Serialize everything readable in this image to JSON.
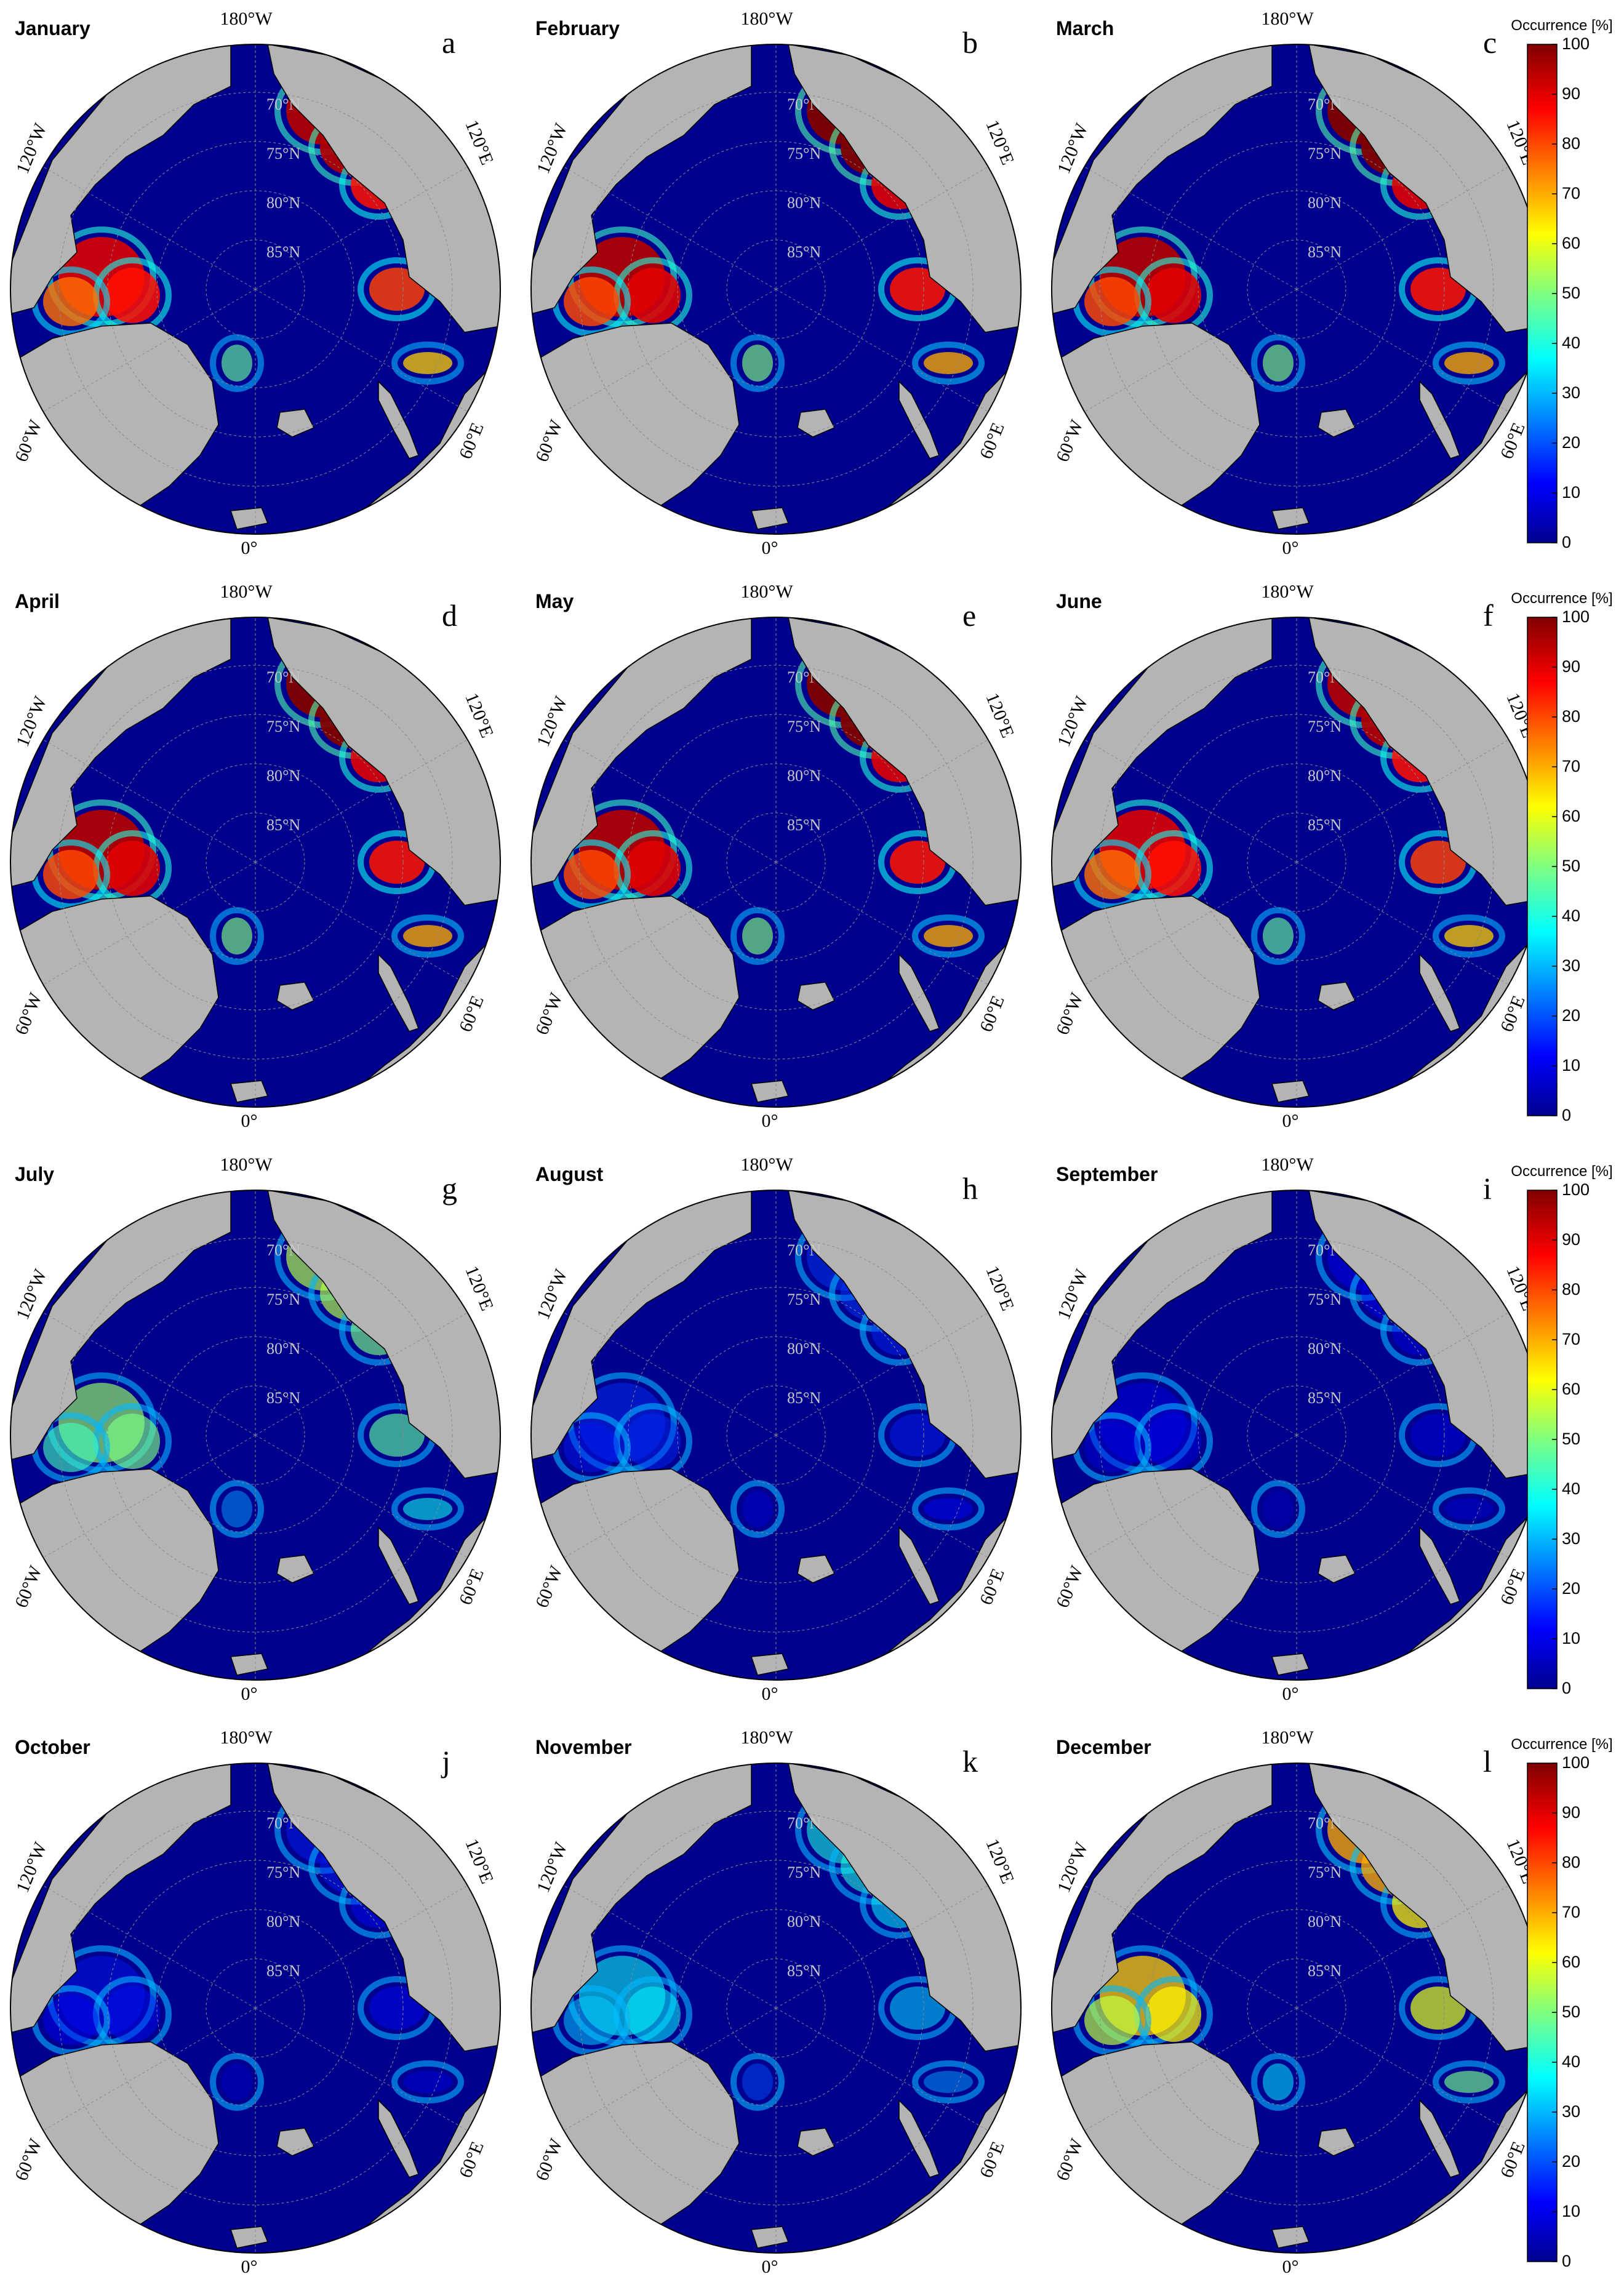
{
  "figure": {
    "map_labels": {
      "lon_top": "180°W",
      "lon_bottom": "0°",
      "lon_upper_left": "120°W",
      "lon_lower_left": "60°W",
      "lon_upper_right": "120°E",
      "lon_lower_right": "60°E",
      "lat_rings": [
        "70°N",
        "75°N",
        "80°N",
        "85°N"
      ]
    },
    "colorbar": {
      "title": "Occurrence [%]",
      "ticks": [
        "100",
        "90",
        "80",
        "70",
        "60",
        "50",
        "40",
        "30",
        "20",
        "10",
        "0"
      ],
      "min": 0,
      "max": 100,
      "colormap": "jet"
    },
    "colors": {
      "land": "#b4b4b4",
      "ocean": "#00008f",
      "coast": "#000000",
      "graticule": "#8a8a8a"
    },
    "panels": [
      {
        "month": "January",
        "letter": "a",
        "intensity": 0.95
      },
      {
        "month": "February",
        "letter": "b",
        "intensity": 1.0
      },
      {
        "month": "March",
        "letter": "c",
        "intensity": 1.0
      },
      {
        "month": "April",
        "letter": "d",
        "intensity": 1.0
      },
      {
        "month": "May",
        "letter": "e",
        "intensity": 1.0
      },
      {
        "month": "June",
        "letter": "f",
        "intensity": 0.95
      },
      {
        "month": "July",
        "letter": "g",
        "intensity": 0.55
      },
      {
        "month": "August",
        "letter": "h",
        "intensity": 0.18
      },
      {
        "month": "September",
        "letter": "i",
        "intensity": 0.12
      },
      {
        "month": "October",
        "letter": "j",
        "intensity": 0.15
      },
      {
        "month": "November",
        "letter": "k",
        "intensity": 0.4
      },
      {
        "month": "December",
        "letter": "l",
        "intensity": 0.7
      }
    ]
  }
}
